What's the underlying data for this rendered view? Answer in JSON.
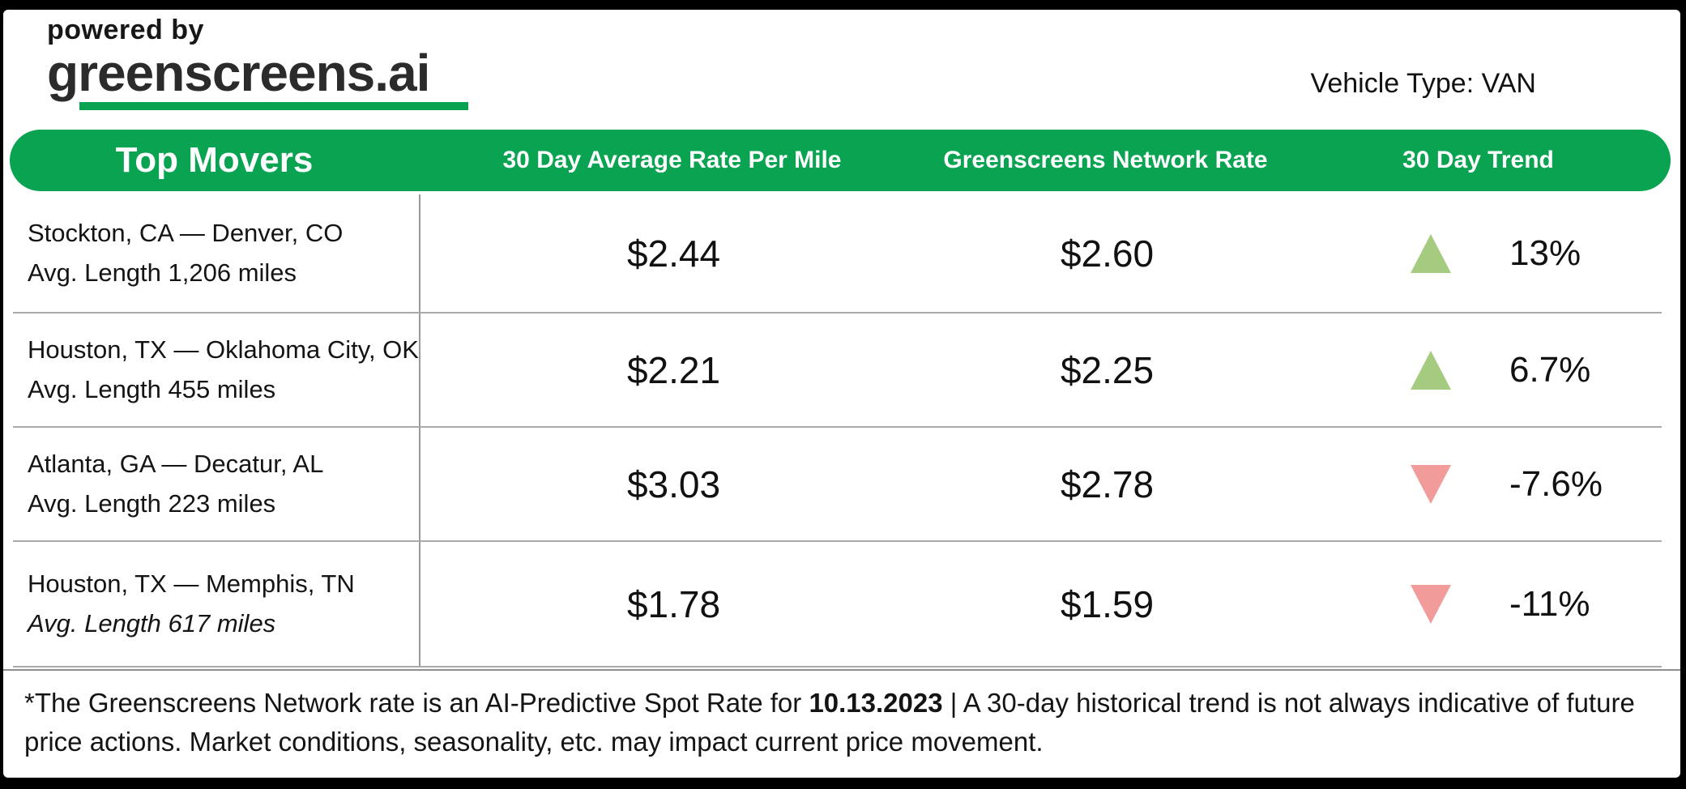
{
  "logo": {
    "powered_by": "powered by",
    "brand": "greenscreens.ai"
  },
  "header": {
    "vehicle_type": "Vehicle Type: VAN"
  },
  "table": {
    "title": "Top Movers",
    "columns": [
      "30 Day Average Rate Per Mile",
      "Greenscreens Network Rate",
      "30 Day Trend"
    ],
    "rows": [
      {
        "lane": "Stockton, CA — Denver, CO",
        "avg_length": "Avg. Length 1,206 miles",
        "avg_rate": "$2.44",
        "network_rate": "$2.60",
        "trend": {
          "direction": "up",
          "pct": "13%"
        }
      },
      {
        "lane": "Houston, TX — Oklahoma City, OK",
        "avg_length": "Avg. Length 455 miles",
        "avg_rate": "$2.21",
        "network_rate": "$2.25",
        "trend": {
          "direction": "up",
          "pct": "6.7%"
        }
      },
      {
        "lane": "Atlanta, GA — Decatur, AL",
        "avg_length": "Avg. Length 223 miles",
        "avg_rate": "$3.03",
        "network_rate": "$2.78",
        "trend": {
          "direction": "down",
          "pct": "-7.6%"
        }
      },
      {
        "lane": "Houston, TX — Memphis, TN",
        "avg_length": "Avg. Length 617 miles",
        "avg_rate": "$1.78",
        "network_rate": "$1.59",
        "trend": {
          "direction": "down",
          "pct": "-11%"
        }
      }
    ]
  },
  "footer": {
    "prefix": "*The Greenscreens Network rate is an AI-Predictive Spot Rate for ",
    "date": "10.13.2023",
    "suffix": " | A 30-day historical trend is not always indicative of future price actions. Market conditions, seasonality, etc. may impact current price movement."
  },
  "colors": {
    "brand_green": "#09a351",
    "trend_up": "#a5cb80",
    "trend_down": "#f29b9b"
  }
}
